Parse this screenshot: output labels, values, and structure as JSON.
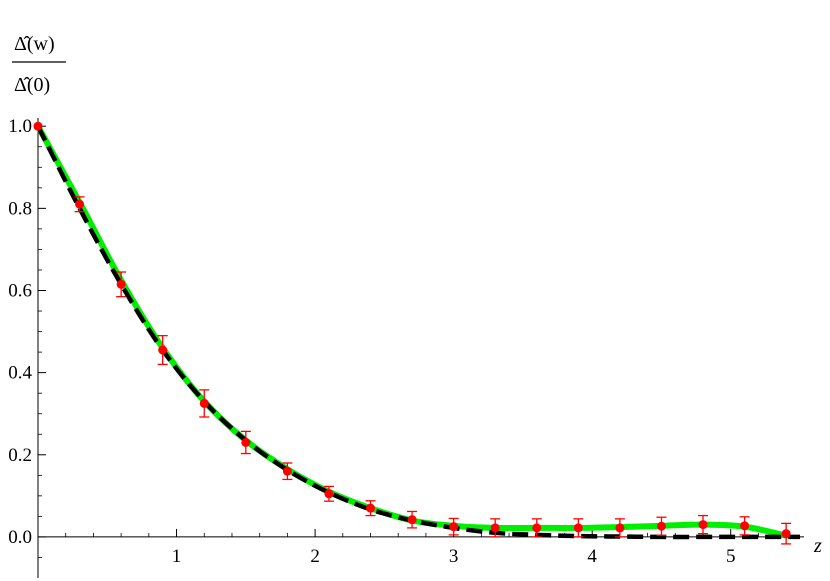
{
  "chart_data": {
    "type": "scatter",
    "title": "",
    "xlabel": "z",
    "ylabel": {
      "numerator": "Δ̂(w)",
      "denominator": "Δ̂(0)"
    },
    "xlim": [
      0,
      5.5
    ],
    "ylim": [
      -0.1,
      1.02
    ],
    "x_ticks": [
      1,
      2,
      3,
      4,
      5
    ],
    "y_ticks": [
      0.0,
      0.2,
      0.4,
      0.6,
      0.8,
      1.0
    ],
    "y_tick_labels": [
      "0.0",
      "0.2",
      "0.4",
      "0.6",
      "0.8",
      "1.0"
    ],
    "grid": false,
    "series": [
      {
        "style": "solid-green",
        "color": "#00ee00",
        "x": [
          0,
          0.3,
          0.6,
          0.9,
          1.2,
          1.5,
          1.8,
          2.1,
          2.4,
          2.7,
          3.0,
          3.3,
          3.6,
          3.9,
          4.2,
          4.5,
          4.8,
          5.1,
          5.4
        ],
        "y": [
          1.0,
          0.815,
          0.625,
          0.46,
          0.33,
          0.235,
          0.165,
          0.11,
          0.07,
          0.04,
          0.027,
          0.022,
          0.022,
          0.022,
          0.024,
          0.027,
          0.03,
          0.025,
          0.003
        ]
      },
      {
        "style": "dashed-black",
        "color": "#000000",
        "x": [
          0,
          0.3,
          0.6,
          0.9,
          1.2,
          1.5,
          1.8,
          2.1,
          2.4,
          2.7,
          3.0,
          3.3,
          3.6,
          3.9,
          4.2,
          4.5,
          4.8,
          5.1,
          5.5
        ],
        "y": [
          1.0,
          0.8,
          0.615,
          0.455,
          0.33,
          0.235,
          0.163,
          0.108,
          0.067,
          0.04,
          0.022,
          0.01,
          0.005,
          0.002,
          0.001,
          0.0,
          0.0,
          0.0,
          0.0
        ]
      },
      {
        "style": "points-with-errorbars",
        "color": "#ff0000",
        "x": [
          0,
          0.3,
          0.6,
          0.9,
          1.2,
          1.5,
          1.8,
          2.1,
          2.4,
          2.7,
          3.0,
          3.3,
          3.6,
          3.9,
          4.2,
          4.5,
          4.8,
          5.1,
          5.4
        ],
        "y": [
          1.0,
          0.81,
          0.615,
          0.455,
          0.325,
          0.23,
          0.16,
          0.105,
          0.07,
          0.042,
          0.025,
          0.022,
          0.022,
          0.022,
          0.022,
          0.026,
          0.03,
          0.027,
          0.008
        ],
        "error": [
          0.0,
          0.018,
          0.03,
          0.035,
          0.033,
          0.027,
          0.02,
          0.018,
          0.018,
          0.02,
          0.02,
          0.022,
          0.022,
          0.022,
          0.022,
          0.022,
          0.022,
          0.022,
          0.025
        ]
      }
    ]
  }
}
